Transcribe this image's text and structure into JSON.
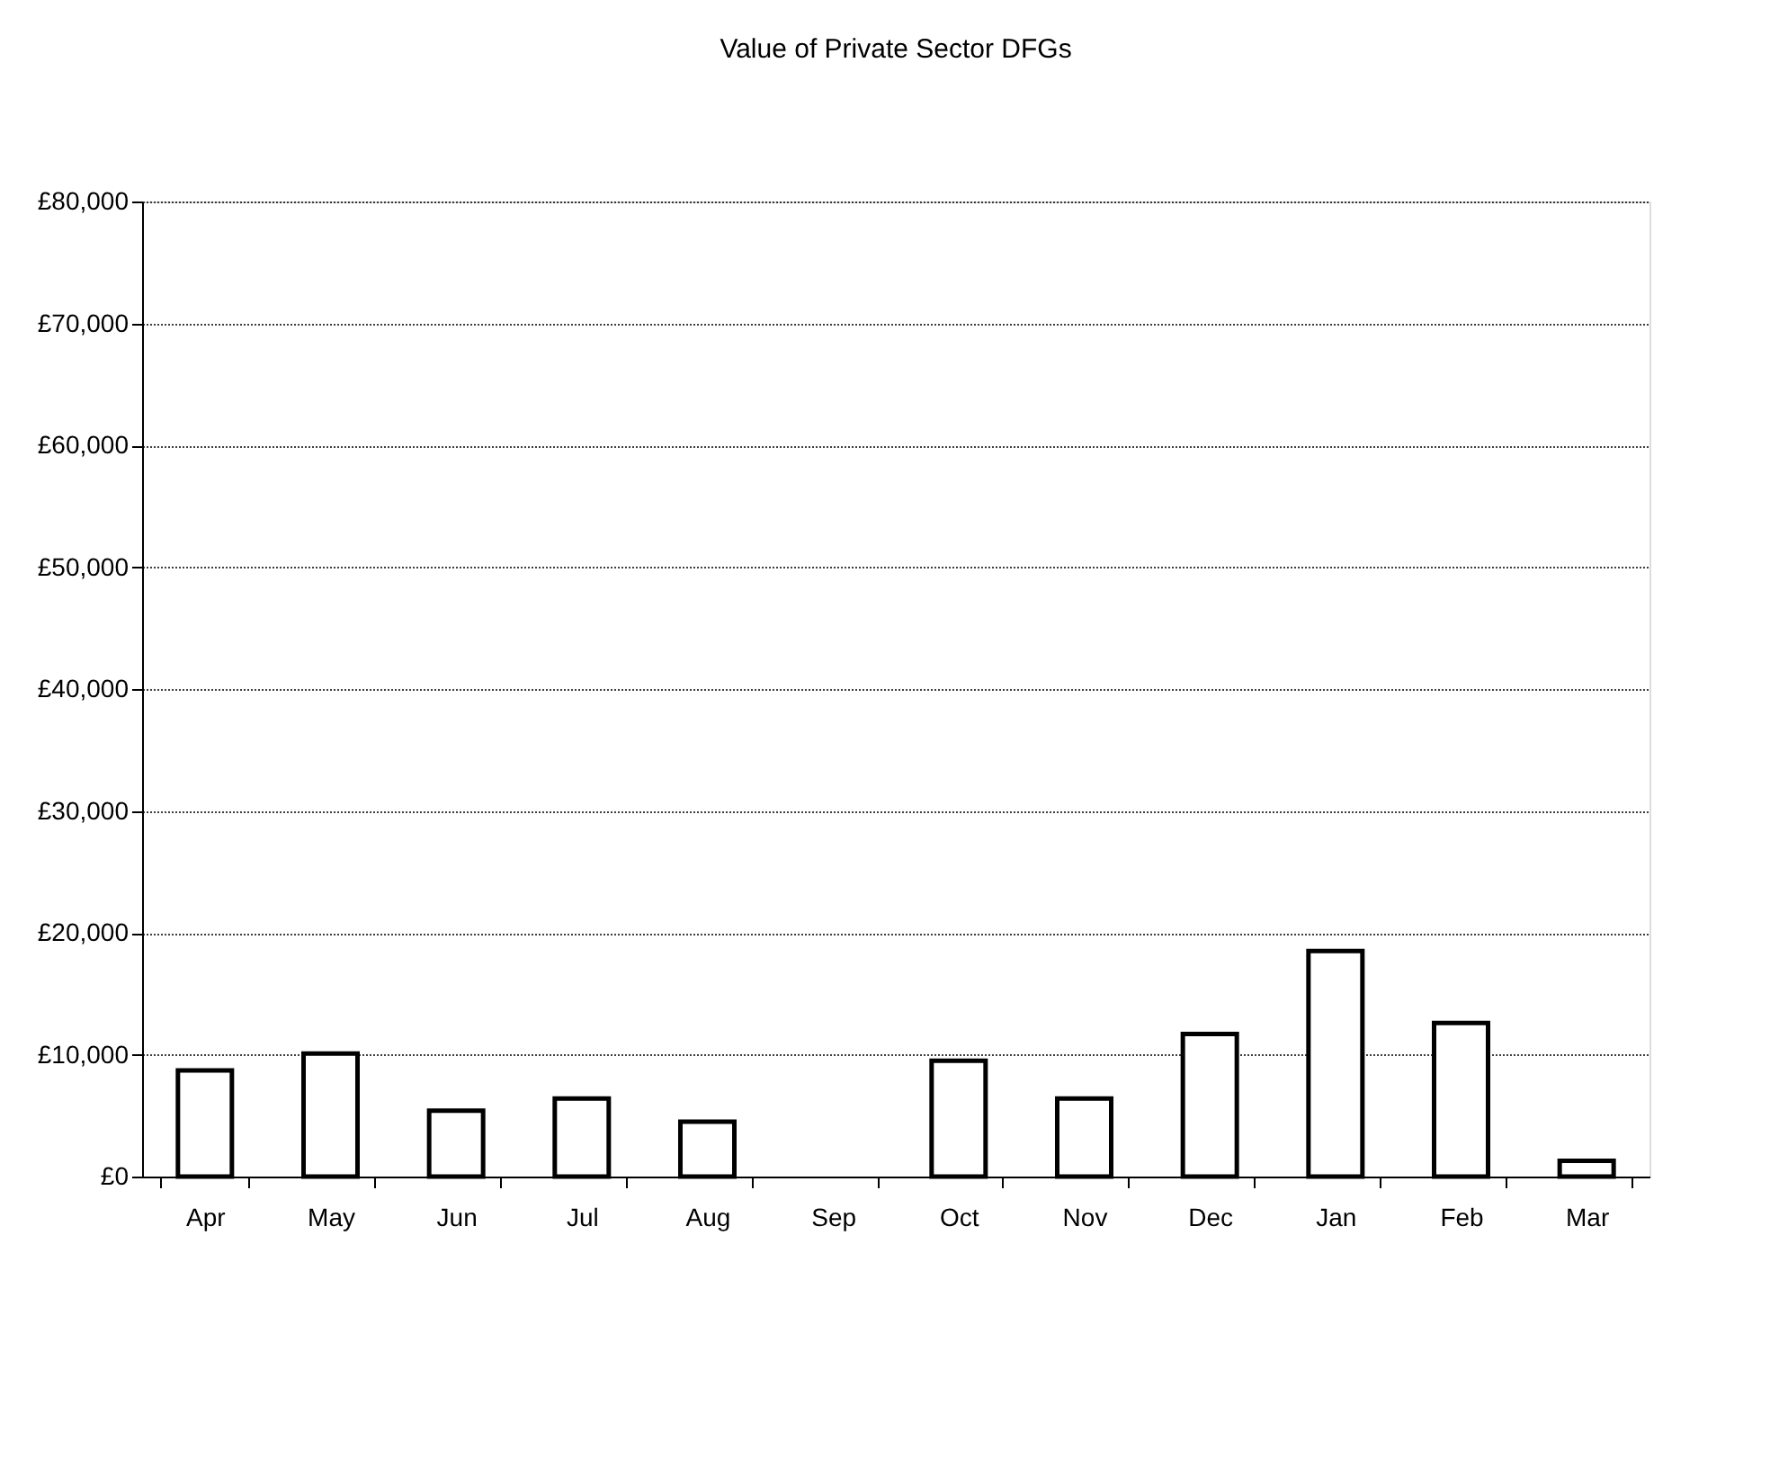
{
  "chart_data": {
    "type": "bar",
    "title": "Value of Private  Sector DFGs",
    "categories": [
      "Apr",
      "May",
      "Jun",
      "Jul",
      "Aug",
      "Sep",
      "Oct",
      "Nov",
      "Dec",
      "Jan",
      "Feb",
      "Mar"
    ],
    "values": [
      8700,
      10100,
      5400,
      6400,
      4500,
      0,
      9500,
      6400,
      11700,
      18500,
      12600,
      1300
    ],
    "color": "#ffffff",
    "ylim": [
      0,
      80000
    ],
    "yticks": [
      {
        "value": 0,
        "label": "£0"
      },
      {
        "value": 10000,
        "label": "£10,000"
      },
      {
        "value": 20000,
        "label": "£20,000"
      },
      {
        "value": 30000,
        "label": "£30,000"
      },
      {
        "value": 40000,
        "label": "£40,000"
      },
      {
        "value": 50000,
        "label": "£50,000"
      },
      {
        "value": 60000,
        "label": "£60,000"
      },
      {
        "value": 70000,
        "label": "£70,000"
      },
      {
        "value": 80000,
        "label": "£80,000"
      }
    ],
    "grid": "y"
  }
}
